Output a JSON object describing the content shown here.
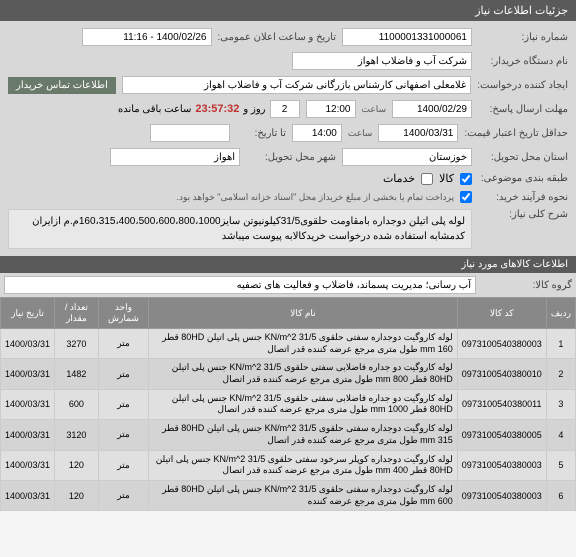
{
  "header": {
    "title": "جزئیات اطلاعات نیاز"
  },
  "top": {
    "need_no_label": "شماره نیاز:",
    "need_no": "1100001331000061",
    "announce_label": "تاریخ و ساعت اعلان عمومی:",
    "announce": "1400/02/26 - 11:16",
    "buyer_label": "نام دستگاه خریدار:",
    "buyer": "شرکت آب و فاضلاب اهواز",
    "creator_label": "ایجاد کننده درخواست:",
    "creator": "غلامعلی اصفهانی کارشناس بازرگانی شرکت آب و فاضلاب اهواز",
    "contact_btn": "اطلاعات تماس خریدار",
    "deadline_label": "مهلت ارسال پاسخ:",
    "deadline_date": "1400/02/29",
    "hour_lbl": "ساعت",
    "deadline_hour": "12:00",
    "remain_prefix": "زمان باقی مانده:",
    "days": "2",
    "days_lbl": "روز و",
    "timer": "23:57:32",
    "timer_lbl": "ساعت باقی مانده",
    "validity_label": "حداقل تاریخ اعتبار قیمت:",
    "validity_date": "1400/03/31",
    "validity_hour": "14:00",
    "delivery_label": "تا تاریخ:",
    "province_label": "استان محل تحویل:",
    "province": "خوزستان",
    "city_label": "شهر محل تحویل:",
    "city": "اهواز",
    "cat_label": "طبقه بندی موضوعی:",
    "kala_cb": "کالا",
    "khadamat_cb": "خدمات",
    "buy_label": "نحوه فرآیند خرید:",
    "buy_note": "پرداخت تمام یا بخشی از مبلغ خریداز محل \"اسناد خزانه اسلامی\" خواهد بود."
  },
  "desc": {
    "label": "شرح کلی نیاز:",
    "text": "لوله پلی اتیلن دوجداره بامقاومت حلقوی31/5کیلونیوتن سایز160،315،400،500،600،800،1000م.م ازایران کدمشابه استفاده شده درخواست خریدکالابه پیوست میباشد"
  },
  "items_header": "اطلاعات کالاهای مورد نیاز",
  "group": {
    "label": "گروه کالا:",
    "value": "آب رسانی؛ مدیریت پسماند، فاضلاب و فعالیت های تصفیه"
  },
  "table": {
    "cols": [
      "ردیف",
      "کد کالا",
      "نام کالا",
      "واحد شمارش",
      "تعداد / مقدار",
      "تاریخ نیاز"
    ],
    "rows": [
      {
        "n": "1",
        "code": "0973100540380003",
        "name": "لوله کاروگیت دوجداره سفتی حلقوی 31/5 KN/m^2 جنس پلی اتیلن 80HD قطر 160 mm طول متری مرجع عرضه کننده قدر اتصال",
        "unit": "متر",
        "qty": "3270",
        "date": "1400/03/31"
      },
      {
        "n": "2",
        "code": "0973100540380010",
        "name": "لوله کاروگیت دو جداره فاضلابی سفتی حلقوی 31/5 KN/m^2 جنس پلی اتیلن 80HD قطر 800 mm طول متری مرجع عرضه کننده قدر اتصال",
        "unit": "متر",
        "qty": "1482",
        "date": "1400/03/31"
      },
      {
        "n": "3",
        "code": "0973100540380011",
        "name": "لوله کاروگیت دو جداره فاضلابی سفتی حلقوی 31/5 KN/m^2 جنس پلی اتیلن 80HD قطر 1000 mm طول متری مرجع عرضه کننده قدر اتصال",
        "unit": "متر",
        "qty": "600",
        "date": "1400/03/31"
      },
      {
        "n": "4",
        "code": "0973100540380005",
        "name": "لوله کاروگیت دوجداره سفتی حلقوی 31/5 KN/m^2 جنس پلی اتیلن 80HD قطر 315 mm طول متری مرجع عرضه کننده قدر اتصال",
        "unit": "متر",
        "qty": "3120",
        "date": "1400/03/31"
      },
      {
        "n": "5",
        "code": "0973100540380003",
        "name": "لوله کاروگیت دوجداره کوپلر سرخود سفتی حلقوی 31/5 KN/m^2 جنس پلی اتیلن 80HD قطر 400 mm طول متری مرجع عرضه کننده قدر اتصال",
        "unit": "متر",
        "qty": "120",
        "date": "1400/03/31"
      },
      {
        "n": "6",
        "code": "0973100540380003",
        "name": "لوله کاروگیت دوجداره سفتی حلقوی 31/5 KN/m^2 جنس پلی اتیلن 80HD قطر 600 mm طول متری مرجع عرضه کننده",
        "unit": "متر",
        "qty": "120",
        "date": "1400/03/31"
      }
    ]
  }
}
